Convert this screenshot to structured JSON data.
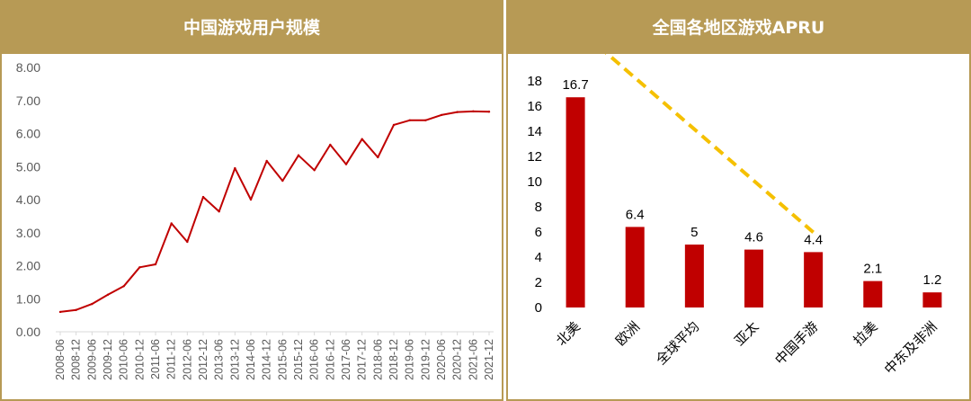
{
  "chart_data": [
    {
      "type": "line",
      "title": "中国游戏用户规模",
      "xlabel": "",
      "ylabel": "",
      "ylim": [
        0,
        8
      ],
      "yticks": [
        "0.00",
        "1.00",
        "2.00",
        "3.00",
        "4.00",
        "5.00",
        "6.00",
        "7.00",
        "8.00"
      ],
      "x": [
        "2008-06",
        "2008-12",
        "2009-06",
        "2009-12",
        "2010-06",
        "2010-12",
        "2011-06",
        "2011-12",
        "2012-06",
        "2012-12",
        "2013-06",
        "2013-12",
        "2014-06",
        "2014-12",
        "2015-06",
        "2015-12",
        "2016-06",
        "2016-12",
        "2017-06",
        "2017-12",
        "2018-06",
        "2018-12",
        "2019-06",
        "2019-12",
        "2020-06",
        "2020-12",
        "2021-06",
        "2021-12"
      ],
      "series": [
        {
          "values": [
            0.6,
            0.66,
            0.84,
            1.12,
            1.38,
            1.95,
            2.04,
            3.28,
            2.72,
            4.08,
            3.64,
            4.95,
            4.0,
            5.17,
            4.57,
            5.34,
            4.89,
            5.66,
            5.07,
            5.83,
            5.28,
            6.26,
            6.4,
            6.4,
            6.56,
            6.65,
            6.67,
            6.66
          ]
        }
      ],
      "line_color": "#c00000",
      "grid": false
    },
    {
      "type": "bar",
      "title": "全国各地区游戏APRU",
      "xlabel": "",
      "ylabel": "",
      "ylim": [
        0,
        18
      ],
      "yticks": [
        "0",
        "2",
        "4",
        "6",
        "8",
        "10",
        "12",
        "14",
        "16",
        "18"
      ],
      "categories": [
        "北美",
        "欧洲",
        "全球平均",
        "亚太",
        "中国手游",
        "拉美",
        "中东及非洲"
      ],
      "values": [
        16.7,
        6.4,
        5,
        4.6,
        4.4,
        2.1,
        1.2
      ],
      "value_labels": [
        "16.7",
        "6.4",
        "5",
        "4.6",
        "4.4",
        "2.1",
        "1.2"
      ],
      "bar_color": "#c00000",
      "annotation": {
        "type": "dashed-arrow",
        "from": "中国手游",
        "to": "北美",
        "color": "#f5c000"
      },
      "grid": false
    }
  ]
}
